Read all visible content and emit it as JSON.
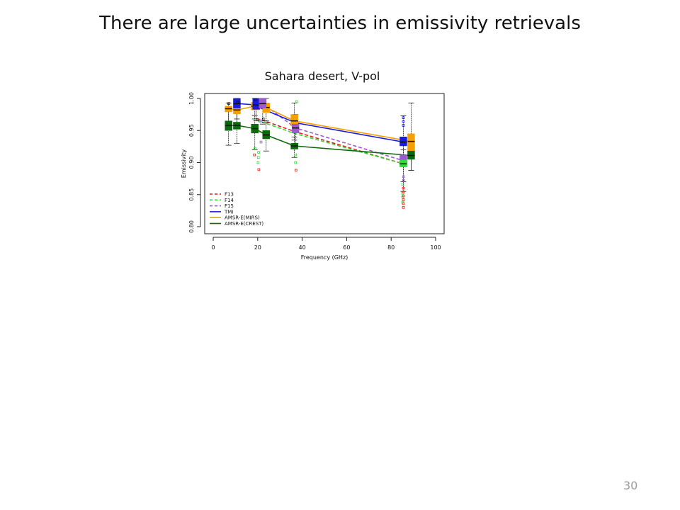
{
  "slide": {
    "title": "There are large uncertainties in emissivity retrievals",
    "subtitle": "Sahara desert, V-pol",
    "page_number": "30"
  },
  "chart_data": {
    "type": "box-line",
    "xlabel": "Frequency (GHz)",
    "ylabel": "Emissivity",
    "xlim": [
      0,
      100
    ],
    "ylim": [
      0.8,
      1.0
    ],
    "xticks": [
      "0",
      "20",
      "40",
      "60",
      "80",
      "100"
    ],
    "yticks": [
      "0.80",
      "0.85",
      "0.90",
      "0.95",
      "1.00"
    ],
    "legend_position": "bottom-left",
    "series": [
      {
        "name": "F13",
        "color": "#e41a1c",
        "style": "dashed",
        "x": [
          19.35,
          22.235,
          37,
          85.5
        ],
        "y": [
          0.969,
          0.966,
          0.948,
          0.898
        ]
      },
      {
        "name": "F14",
        "color": "#33dd33",
        "style": "dashed",
        "x": [
          19.35,
          22.235,
          37,
          85.5
        ],
        "y": [
          0.967,
          0.963,
          0.945,
          0.898
        ]
      },
      {
        "name": "F15",
        "color": "#9b59d0",
        "style": "dashed",
        "x": [
          19.35,
          22.235,
          37,
          85.5
        ],
        "y": [
          0.995,
          0.992,
          0.954,
          0.903
        ]
      },
      {
        "name": "TMI",
        "color": "#1a1adf",
        "style": "solid",
        "x": [
          10.65,
          19.35,
          21.3,
          37,
          85.5
        ],
        "y": [
          0.992,
          0.99,
          0.985,
          0.962,
          0.932
        ]
      },
      {
        "name": "AMSR-E(MIRS)",
        "color": "#f5a000",
        "style": "solid",
        "x": [
          6.9,
          10.65,
          18.7,
          23.8,
          36.5,
          89
        ],
        "y": [
          0.984,
          0.982,
          0.988,
          0.986,
          0.965,
          0.933
        ]
      },
      {
        "name": "AMSR-E(CREST)",
        "color": "#0b6a0b",
        "style": "solid",
        "x": [
          6.9,
          10.65,
          18.7,
          23.8,
          36.5,
          89
        ],
        "y": [
          0.958,
          0.958,
          0.953,
          0.943,
          0.926,
          0.911
        ]
      }
    ],
    "boxes": [
      {
        "series": "AMSR-E(MIRS)",
        "x": 6.9,
        "q1": 0.979,
        "median": 0.984,
        "q3": 0.988,
        "lo": 0.96,
        "hi": 0.993
      },
      {
        "series": "AMSR-E(MIRS)",
        "x": 10.65,
        "q1": 0.976,
        "median": 0.982,
        "q3": 0.987,
        "lo": 0.962,
        "hi": 0.992
      },
      {
        "series": "AMSR-E(MIRS)",
        "x": 18.7,
        "q1": 0.982,
        "median": 0.988,
        "q3": 0.994,
        "lo": 0.968,
        "hi": 1.0
      },
      {
        "series": "AMSR-E(MIRS)",
        "x": 23.8,
        "q1": 0.978,
        "median": 0.986,
        "q3": 0.993,
        "lo": 0.962,
        "hi": 1.0
      },
      {
        "series": "AMSR-E(MIRS)",
        "x": 36.5,
        "q1": 0.957,
        "median": 0.965,
        "q3": 0.975,
        "lo": 0.935,
        "hi": 0.993
      },
      {
        "series": "AMSR-E(MIRS)",
        "x": 89,
        "q1": 0.918,
        "median": 0.933,
        "q3": 0.945,
        "lo": 0.888,
        "hi": 0.993
      },
      {
        "series": "TMI",
        "x": 10.65,
        "q1": 0.985,
        "median": 0.992,
        "q3": 1.0,
        "lo": 0.968,
        "hi": 1.0
      },
      {
        "series": "TMI",
        "x": 19.35,
        "q1": 0.983,
        "median": 0.99,
        "q3": 1.0,
        "lo": 0.965,
        "hi": 1.0
      },
      {
        "series": "TMI",
        "x": 85.5,
        "q1": 0.926,
        "median": 0.932,
        "q3": 0.94,
        "lo": 0.905,
        "hi": 0.973
      },
      {
        "series": "F15",
        "x": 22.235,
        "q1": 0.985,
        "median": 0.992,
        "q3": 1.0,
        "lo": 0.96,
        "hi": 1.0
      },
      {
        "series": "F15",
        "x": 37,
        "q1": 0.946,
        "median": 0.954,
        "q3": 0.96,
        "lo": 0.93,
        "hi": 0.975
      },
      {
        "series": "F15",
        "x": 85.5,
        "q1": 0.896,
        "median": 0.903,
        "q3": 0.912,
        "lo": 0.87,
        "hi": 0.93
      },
      {
        "series": "F14",
        "x": 85.5,
        "q1": 0.893,
        "median": 0.898,
        "q3": 0.904,
        "lo": 0.855,
        "hi": 0.92
      },
      {
        "series": "AMSR-E(CREST)",
        "x": 6.9,
        "q1": 0.95,
        "median": 0.958,
        "q3": 0.965,
        "lo": 0.927,
        "hi": 0.982
      },
      {
        "series": "AMSR-E(CREST)",
        "x": 10.65,
        "q1": 0.952,
        "median": 0.958,
        "q3": 0.963,
        "lo": 0.93,
        "hi": 0.978
      },
      {
        "series": "AMSR-E(CREST)",
        "x": 18.7,
        "q1": 0.946,
        "median": 0.953,
        "q3": 0.96,
        "lo": 0.92,
        "hi": 0.973
      },
      {
        "series": "AMSR-E(CREST)",
        "x": 23.8,
        "q1": 0.937,
        "median": 0.943,
        "q3": 0.95,
        "lo": 0.918,
        "hi": 0.965
      },
      {
        "series": "AMSR-E(CREST)",
        "x": 36.5,
        "q1": 0.921,
        "median": 0.926,
        "q3": 0.93,
        "lo": 0.908,
        "hi": 0.94
      },
      {
        "series": "AMSR-E(CREST)",
        "x": 89,
        "q1": 0.905,
        "median": 0.911,
        "q3": 0.918,
        "lo": 0.888,
        "hi": 0.932
      }
    ],
    "outliers": [
      {
        "color": "#e41a1c",
        "x": 20.5,
        "y": 0.889
      },
      {
        "color": "#e41a1c",
        "x": 37.2,
        "y": 0.888
      },
      {
        "color": "#e41a1c",
        "x": 85.5,
        "y": 0.83
      },
      {
        "color": "#e41a1c",
        "x": 85.5,
        "y": 0.836
      },
      {
        "color": "#e41a1c",
        "x": 85.5,
        "y": 0.842
      },
      {
        "color": "#e41a1c",
        "x": 85.5,
        "y": 0.848
      },
      {
        "color": "#e41a1c",
        "x": 85.5,
        "y": 0.854
      },
      {
        "color": "#e41a1c",
        "x": 85.5,
        "y": 0.86
      },
      {
        "color": "#e41a1c",
        "x": 18.5,
        "y": 0.912
      },
      {
        "color": "#33dd33",
        "x": 18.8,
        "y": 0.922
      },
      {
        "color": "#33dd33",
        "x": 20.2,
        "y": 0.9
      },
      {
        "color": "#33dd33",
        "x": 20.3,
        "y": 0.908
      },
      {
        "color": "#33dd33",
        "x": 20.4,
        "y": 0.916
      },
      {
        "color": "#33dd33",
        "x": 37.0,
        "y": 0.9
      },
      {
        "color": "#33dd33",
        "x": 37.0,
        "y": 0.912
      },
      {
        "color": "#33dd33",
        "x": 85.2,
        "y": 0.838
      },
      {
        "color": "#33dd33",
        "x": 85.2,
        "y": 0.846
      },
      {
        "color": "#33dd33",
        "x": 85.2,
        "y": 0.852
      },
      {
        "color": "#33dd33",
        "x": 85.2,
        "y": 0.866
      },
      {
        "color": "#33dd33",
        "x": 37.5,
        "y": 0.995
      },
      {
        "color": "#9b59d0",
        "x": 21.5,
        "y": 0.932
      },
      {
        "color": "#9b59d0",
        "x": 85.6,
        "y": 0.872
      },
      {
        "color": "#9b59d0",
        "x": 85.6,
        "y": 0.878
      },
      {
        "color": "#1a1adf",
        "x": 85.5,
        "y": 0.958
      },
      {
        "color": "#1a1adf",
        "x": 85.5,
        "y": 0.964
      },
      {
        "color": "#1a1adf",
        "x": 85.5,
        "y": 0.97
      },
      {
        "color": "#1a1adf",
        "x": 21.0,
        "y": 0.965
      },
      {
        "color": "#111111",
        "x": 7.0,
        "y": 0.992
      },
      {
        "color": "#111111",
        "x": 11.0,
        "y": 0.994
      },
      {
        "color": "#111111",
        "x": 19.0,
        "y": 0.998
      },
      {
        "color": "#111111",
        "x": 22.5,
        "y": 0.968
      }
    ]
  }
}
